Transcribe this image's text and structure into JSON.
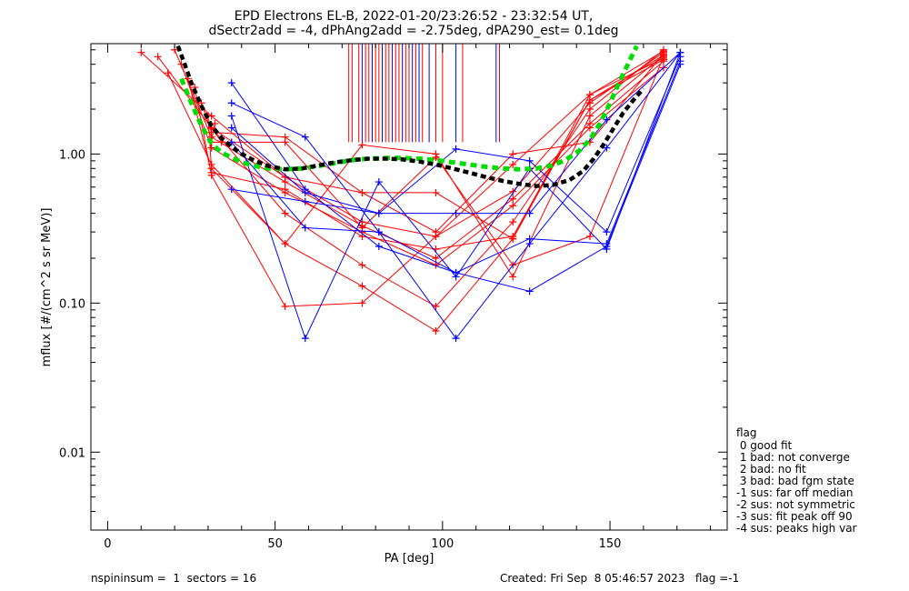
{
  "chart_data": {
    "type": "line",
    "title": "EPD Electrons EL-B, 2022-01-20/23:26:52 - 23:32:54 UT,",
    "subtitle": "dSectr2add = -4, dPhAng2add = -2.75deg, dPA290_est=   0.1deg",
    "xlabel": "PA [deg]",
    "ylabel": "mflux [#/(cm^2 s sr MeV)]",
    "xlim": [
      -5,
      185
    ],
    "ylim": [
      0.003,
      5.5
    ],
    "yscale": "log",
    "xticks": [
      0,
      50,
      100,
      150
    ],
    "xtick_labels": [
      "0",
      "50",
      "100",
      "150"
    ],
    "yticks": [
      0.01,
      0.1,
      1.0
    ],
    "ytick_labels": [
      "0.01",
      "0.10",
      "1.00"
    ],
    "grid": false,
    "colors": {
      "red": "#ff0000",
      "blue": "#0000ff",
      "green": "#00dd00",
      "black": "#000000"
    },
    "series": [
      {
        "color": "red",
        "x": [
          10,
          31,
          53,
          76,
          98,
          121,
          144,
          166
        ],
        "y": [
          4.8,
          1.8,
          0.7,
          0.35,
          0.28,
          0.56,
          2.2,
          4.8
        ]
      },
      {
        "color": "red",
        "x": [
          15,
          31,
          53,
          76,
          98,
          121,
          144,
          166
        ],
        "y": [
          4.5,
          1.5,
          0.4,
          0.18,
          0.095,
          0.35,
          2.0,
          5.0
        ]
      },
      {
        "color": "red",
        "x": [
          18,
          31,
          53,
          76,
          98,
          121,
          144,
          166
        ],
        "y": [
          3.5,
          0.85,
          0.25,
          0.13,
          0.065,
          0.27,
          2.5,
          4.4
        ]
      },
      {
        "color": "red",
        "x": [
          20,
          31,
          53,
          76,
          98,
          121,
          144,
          166
        ],
        "y": [
          5.0,
          1.3,
          0.65,
          0.33,
          0.2,
          0.5,
          1.6,
          4.2
        ]
      },
      {
        "color": "red",
        "x": [
          22,
          31,
          53,
          76,
          98,
          121,
          144,
          166
        ],
        "y": [
          4.0,
          1.1,
          0.55,
          0.3,
          0.18,
          0.45,
          1.5,
          3.8
        ]
      },
      {
        "color": "red",
        "x": [
          24,
          31,
          53,
          76,
          98,
          121,
          144,
          166
        ],
        "y": [
          3.2,
          0.75,
          0.58,
          0.28,
          0.23,
          0.28,
          2.3,
          4.6
        ]
      },
      {
        "color": "red",
        "x": [
          26,
          31,
          53,
          76,
          98,
          121,
          144,
          166
        ],
        "y": [
          2.8,
          0.72,
          0.095,
          0.1,
          0.28,
          0.85,
          2.5,
          4.9
        ]
      },
      {
        "color": "red",
        "x": [
          28,
          31,
          53,
          76,
          98,
          121,
          144,
          166
        ],
        "y": [
          2.2,
          1.4,
          1.3,
          0.55,
          0.55,
          0.27,
          2.3,
          4.3
        ]
      },
      {
        "color": "red",
        "x": [
          30,
          31,
          53,
          76,
          98,
          121,
          144,
          166
        ],
        "y": [
          1.8,
          0.8,
          0.25,
          1.15,
          1.0,
          0.15,
          1.8,
          4.6
        ]
      },
      {
        "color": "red",
        "x": [
          32,
          31,
          53,
          76,
          98,
          121,
          144,
          166
        ],
        "y": [
          1.6,
          1.2,
          1.2,
          0.32,
          0.95,
          0.18,
          0.28,
          4.5
        ]
      },
      {
        "color": "red",
        "x": [
          34,
          31,
          53,
          76,
          98,
          121,
          144,
          166
        ],
        "y": [
          1.2,
          1.5,
          0.7,
          0.55,
          0.3,
          1.0,
          1.2,
          4.7
        ]
      },
      {
        "color": "blue",
        "x": [
          37,
          59,
          81,
          104,
          126,
          149,
          171
        ],
        "y": [
          3.0,
          0.58,
          0.24,
          0.16,
          0.12,
          0.24,
          4.0
        ]
      },
      {
        "color": "blue",
        "x": [
          37,
          59,
          81,
          104,
          126,
          149,
          171
        ],
        "y": [
          2.2,
          1.3,
          0.3,
          0.058,
          0.25,
          1.1,
          4.8
        ]
      },
      {
        "color": "blue",
        "x": [
          37,
          59,
          81,
          104,
          126,
          149,
          171
        ],
        "y": [
          1.8,
          0.058,
          0.65,
          0.15,
          0.8,
          0.23,
          4.8
        ]
      },
      {
        "color": "blue",
        "x": [
          37,
          59,
          81,
          104,
          126,
          149,
          171
        ],
        "y": [
          1.5,
          0.55,
          0.4,
          1.08,
          0.9,
          0.3,
          4.5
        ]
      },
      {
        "color": "blue",
        "x": [
          37,
          59,
          81,
          104,
          126,
          149,
          171
        ],
        "y": [
          1.2,
          0.32,
          0.3,
          0.16,
          0.27,
          0.25,
          4.2
        ]
      },
      {
        "color": "blue",
        "x": [
          37,
          59,
          81,
          104,
          126,
          149,
          171
        ],
        "y": [
          0.58,
          0.48,
          0.4,
          0.4,
          0.4,
          1.7,
          4.8
        ]
      }
    ],
    "green_fit": {
      "x": [
        22,
        25,
        28,
        31,
        34,
        37,
        40,
        44,
        48,
        53,
        58,
        63,
        68,
        73,
        78,
        83,
        88,
        93,
        98,
        103,
        108,
        113,
        118,
        123,
        128,
        133,
        137,
        141,
        144,
        147,
        150,
        153,
        156,
        158
      ],
      "y": [
        3.2,
        2.2,
        1.55,
        1.18,
        1.02,
        0.95,
        0.88,
        0.83,
        0.8,
        0.79,
        0.8,
        0.83,
        0.87,
        0.91,
        0.93,
        0.94,
        0.94,
        0.93,
        0.91,
        0.88,
        0.85,
        0.82,
        0.8,
        0.79,
        0.8,
        0.84,
        0.92,
        1.06,
        1.25,
        1.6,
        2.2,
        3.1,
        4.3,
        5.3
      ]
    },
    "black_fit": {
      "x": [
        21,
        23,
        25,
        28,
        31,
        34,
        37,
        40,
        44,
        48,
        53,
        58,
        63,
        68,
        73,
        78,
        83,
        88,
        93,
        98,
        103,
        108,
        113,
        118,
        123,
        128,
        133,
        138,
        142,
        145,
        148,
        151,
        154,
        157,
        160
      ],
      "y": [
        5.3,
        4.0,
        3.0,
        2.1,
        1.55,
        1.28,
        1.12,
        1.0,
        0.9,
        0.83,
        0.79,
        0.8,
        0.84,
        0.88,
        0.91,
        0.93,
        0.93,
        0.92,
        0.89,
        0.85,
        0.8,
        0.75,
        0.7,
        0.66,
        0.63,
        0.61,
        0.62,
        0.67,
        0.77,
        0.92,
        1.15,
        1.48,
        1.9,
        2.3,
        2.75
      ]
    },
    "vertical_lines": {
      "x": [
        72,
        73,
        75,
        76,
        77,
        78,
        79,
        80,
        81,
        82,
        83,
        84,
        85,
        86,
        87,
        88,
        89,
        90,
        91,
        92,
        93,
        94,
        96,
        98,
        100,
        104,
        106,
        116,
        117
      ],
      "colors": [
        "red",
        "red",
        "red",
        "blue",
        "red",
        "red",
        "blue",
        "red",
        "red",
        "blue",
        "red",
        "red",
        "blue",
        "red",
        "red",
        "blue",
        "red",
        "red",
        "blue",
        "red",
        "blue",
        "red",
        "blue",
        "red",
        "red",
        "blue",
        "red",
        "blue",
        "red"
      ],
      "y_bottom": 1.2
    }
  },
  "legend": {
    "title": "flag",
    "entries": [
      " 0 good fit",
      " 1 bad: not converge",
      " 2 bad: no fit",
      " 3 bad: bad fgm state",
      "-1 sus: far off median",
      "-2 sus: not symmetric",
      "-3 sus: fit peak off 90",
      "-4 sus: peaks high var"
    ]
  },
  "footer": {
    "left": "nspininsum =  1  sectors = 16",
    "right": "Created: Fri Sep  8 05:46:57 2023   flag =-1"
  }
}
